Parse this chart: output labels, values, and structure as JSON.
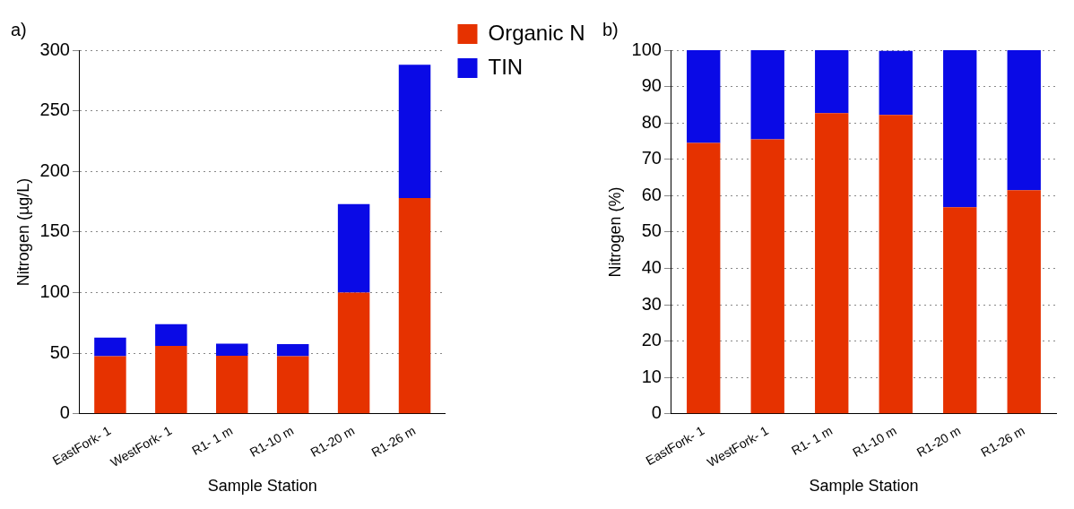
{
  "chart_data": [
    {
      "type": "bar",
      "title": "a)",
      "xlabel": "Sample Station",
      "ylabel": "Nitrogen (µg/L)",
      "categories": [
        "EastFork- 1",
        "WestFork- 1",
        "R1- 1 m",
        "R1-10 m",
        "R1-20 m",
        "R1-26 m"
      ],
      "series": [
        {
          "name": "Organic N",
          "color": "#e63200",
          "values": [
            47.5,
            56,
            48,
            47.5,
            100,
            178
          ]
        },
        {
          "name": "TIN",
          "color": "#0a0ae6",
          "values": [
            15.5,
            18,
            10,
            10,
            73,
            110
          ]
        }
      ],
      "stacked": true,
      "ylim": [
        0,
        300
      ],
      "yticks": [
        0,
        50,
        100,
        150,
        200,
        250,
        300
      ],
      "grid": "y",
      "legend": "right"
    },
    {
      "type": "bar",
      "title": "b)",
      "xlabel": "Sample Station",
      "ylabel": "Nitrogen (%)",
      "categories": [
        "EastFork- 1",
        "WestFork- 1",
        "R1- 1 m",
        "R1-10 m",
        "R1-20 m",
        "R1-26 m"
      ],
      "series": [
        {
          "color": "#e63200",
          "values": [
            74.5,
            75.5,
            82.7,
            82.2,
            56.8,
            61.5
          ]
        },
        {
          "color": "#0a0ae6",
          "values": [
            25.5,
            24.5,
            17.3,
            17.6,
            43.2,
            38.5
          ]
        }
      ],
      "stacked": true,
      "ylim": [
        0,
        100
      ],
      "yticks": [
        0,
        10,
        20,
        30,
        40,
        50,
        60,
        70,
        80,
        90,
        100
      ],
      "grid": "y"
    }
  ]
}
